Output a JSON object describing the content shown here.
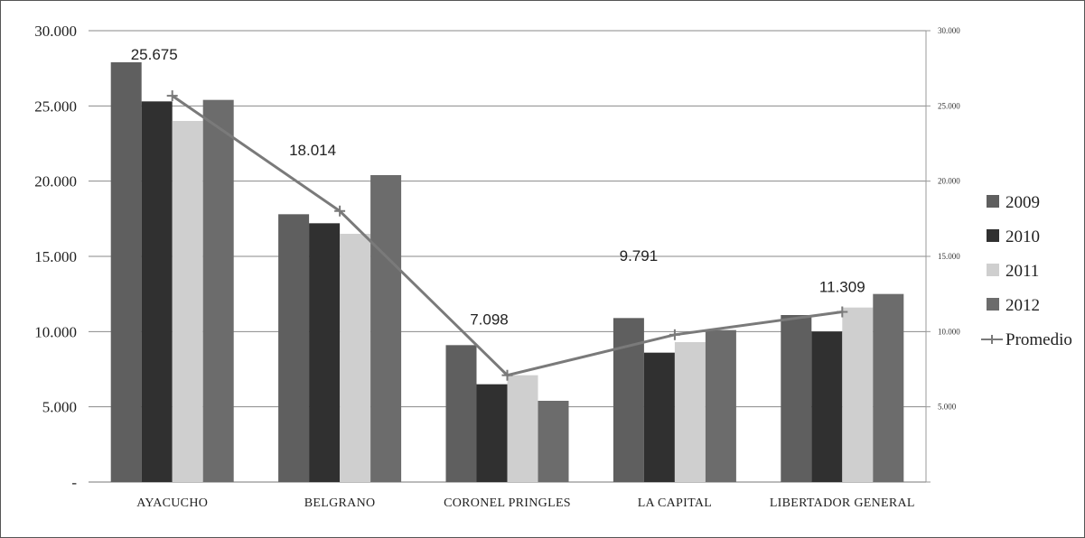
{
  "chart_data": {
    "type": "bar",
    "categories": [
      "AYACUCHO",
      "BELGRANO",
      "CORONEL PRINGLES",
      "LA CAPITAL",
      "LIBERTADOR GENERAL"
    ],
    "series": [
      {
        "name": "2009",
        "values": [
          27900,
          17800,
          9100,
          10900,
          11100
        ],
        "color": "#5f5f5f"
      },
      {
        "name": "2010",
        "values": [
          25300,
          17200,
          6500,
          8600,
          10000
        ],
        "color": "#303030"
      },
      {
        "name": "2011",
        "values": [
          24000,
          16500,
          7100,
          9300,
          11600
        ],
        "color": "#cfcfcf"
      },
      {
        "name": "2012",
        "values": [
          25400,
          20400,
          5400,
          10100,
          12500
        ],
        "color": "#6c6c6c"
      }
    ],
    "line_series": {
      "name": "Promedio",
      "values": [
        25675,
        18014,
        7098,
        9791,
        11309
      ],
      "labels": [
        "25.675",
        "18.014",
        "7.098",
        "9.791",
        "11.309"
      ],
      "color": "#7a7a7a"
    },
    "y_axis_left": {
      "ticks": [
        0,
        5000,
        10000,
        15000,
        20000,
        25000,
        30000
      ],
      "tick_labels": [
        "-",
        "5.000",
        "10.000",
        "15.000",
        "20.000",
        "25.000",
        "30.000"
      ]
    },
    "y_axis_right": {
      "ticks": [
        5000,
        10000,
        15000,
        20000,
        25000,
        30000
      ],
      "tick_labels": [
        "5.000",
        "10.000",
        "15.000",
        "20.000",
        "25.000",
        "30.000"
      ]
    },
    "ylim": [
      0,
      30000
    ],
    "grid": true,
    "legend_position": "right"
  }
}
